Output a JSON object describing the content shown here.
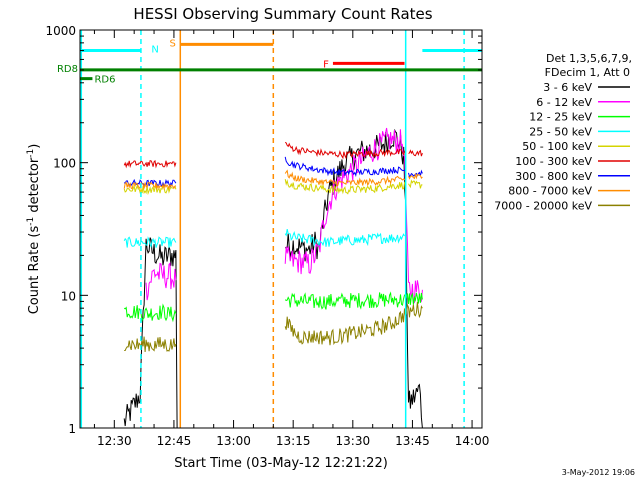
{
  "chart_data": {
    "type": "line",
    "title": "HESSI Observing Summary Count Rates",
    "xlabel": "Start Time (03-May-12 12:21:22)",
    "ylabel_main": "Count Rate (s",
    "ylabel_sup1": "-1",
    "ylabel_mid": " detector",
    "ylabel_sup2": "-1",
    "ylabel_end": ")",
    "yscale": "log",
    "ylim": [
      1,
      1000
    ],
    "x_ticks": [
      {
        "t": 30,
        "label": "12:30"
      },
      {
        "t": 45,
        "label": "12:45"
      },
      {
        "t": 60,
        "label": "13:00"
      },
      {
        "t": 75,
        "label": "13:15"
      },
      {
        "t": 90,
        "label": "13:30"
      },
      {
        "t": 105,
        "label": "13:45"
      },
      {
        "t": 120,
        "label": "14:00"
      }
    ],
    "y_ticks": [
      {
        "v": 1,
        "label": "1"
      },
      {
        "v": 10,
        "label": "10"
      },
      {
        "v": 100,
        "label": "100"
      },
      {
        "v": 1000,
        "label": "1000"
      }
    ],
    "xlim_minutes_after_1200": [
      21.37,
      122.5
    ],
    "legend": {
      "position": "right",
      "header_line1": "Det 1,3,5,6,7,9,",
      "header_line2": "FDecim 1, Att 0",
      "entries": [
        {
          "label": "3 - 6 keV",
          "color": "#000000"
        },
        {
          "label": "6 - 12 keV",
          "color": "#ff00ff"
        },
        {
          "label": "12 - 25 keV",
          "color": "#00ff00"
        },
        {
          "label": "25 - 50 keV",
          "color": "#00ffff"
        },
        {
          "label": "50 - 100 keV",
          "color": "#d4d400"
        },
        {
          "label": "100 - 300 keV",
          "color": "#e00000"
        },
        {
          "label": "300 - 800 keV",
          "color": "#0000ff"
        },
        {
          "label": "800 - 7000 keV",
          "color": "#ff8c00"
        },
        {
          "label": "7000 - 20000 keV",
          "color": "#8b8000"
        }
      ]
    },
    "flags": [
      {
        "label": "N",
        "color": "#00ffff",
        "y": 700,
        "segments": [
          [
            21.4,
            36.8
          ],
          [
            107.5,
            122.5
          ]
        ]
      },
      {
        "label": "S",
        "color": "#ff8c00",
        "y": 780,
        "segments": [
          [
            46.5,
            70
          ]
        ]
      },
      {
        "label": "F",
        "color": "#ff0000",
        "y": 560,
        "segments": [
          [
            85,
            103
          ]
        ]
      },
      {
        "label": "RD8",
        "color": "#008000",
        "y": 500,
        "segments": [
          [
            21.4,
            122.5
          ]
        ]
      },
      {
        "label": "RD6",
        "color": "#008000",
        "y": 430,
        "segments": [
          [
            21.4,
            24.5
          ]
        ]
      }
    ],
    "vertical_markers": [
      {
        "t": 21.7,
        "color": "#00ffff",
        "style": "solid"
      },
      {
        "t": 36.7,
        "color": "#00ffff",
        "style": "dashed"
      },
      {
        "t": 46.6,
        "color": "#ff8c00",
        "style": "solid"
      },
      {
        "t": 70.0,
        "color": "#ff8c00",
        "style": "dashed"
      },
      {
        "t": 103.3,
        "color": "#00ffff",
        "style": "solid"
      },
      {
        "t": 118.0,
        "color": "#00ffff",
        "style": "dashed"
      }
    ],
    "series": [
      {
        "name": "3 - 6 keV",
        "color": "#000000",
        "segments": [
          {
            "t": [
              32.5,
              34.5,
              36.5,
              38,
              40,
              42,
              44,
              45.5,
              45.8
            ],
            "v": [
              1.1,
              1.4,
              1.8,
              24,
              21,
              19,
              20,
              20,
              1.0
            ]
          },
          {
            "t": [
              73,
              75,
              77,
              79,
              80.5,
              81.5,
              82.5,
              84,
              86,
              88,
              90,
              92,
              94,
              96,
              98,
              100,
              101.5,
              102.8,
              103.3,
              104,
              106,
              107,
              107.5
            ],
            "v": [
              24,
              24,
              23,
              22,
              25,
              22,
              35,
              60,
              80,
              100,
              110,
              120,
              125,
              130,
              140,
              160,
              150,
              110,
              40,
              1.5,
              1.8,
              2.0,
              1.0
            ]
          }
        ]
      },
      {
        "name": "6 - 12 keV",
        "color": "#ff00ff",
        "segments": [
          {
            "t": [
              38,
              40,
              42,
              44,
              45.5
            ],
            "v": [
              11,
              15,
              14,
              14,
              13
            ]
          },
          {
            "t": [
              73,
              75,
              77,
              79,
              80.5,
              81.5,
              83,
              85,
              87,
              89,
              91,
              93,
              95,
              97,
              99,
              101,
              102.7,
              103.3,
              104,
              106,
              107.5
            ],
            "v": [
              19,
              18,
              18,
              17,
              20,
              22,
              40,
              60,
              75,
              85,
              95,
              110,
              125,
              135,
              150,
              145,
              140,
              60,
              11,
              11,
              11
            ]
          }
        ]
      },
      {
        "name": "12 - 25 keV",
        "color": "#00ff00",
        "segments": [
          {
            "t": [
              32.5,
              34,
              36,
              38,
              40,
              42,
              44,
              45.5
            ],
            "v": [
              7.8,
              7.6,
              7.5,
              7.3,
              7.4,
              7.5,
              7.2,
              7.3
            ]
          },
          {
            "t": [
              73,
              76,
              80,
              84,
              88,
              92,
              96,
              100,
              103,
              104,
              107.5
            ],
            "v": [
              9.3,
              9.1,
              8.9,
              9.0,
              9.1,
              9.2,
              9.2,
              9.3,
              9.2,
              9.5,
              9.3
            ]
          }
        ]
      },
      {
        "name": "25 - 50 keV",
        "color": "#00ffff",
        "segments": [
          {
            "t": [
              32.5,
              36,
              40,
              44,
              45.5
            ],
            "v": [
              25,
              25,
              25,
              25,
              25
            ]
          },
          {
            "t": [
              73,
              74,
              76,
              80,
              84,
              88,
              92,
              96,
              100,
              103
            ],
            "v": [
              30,
              28,
              27,
              26,
              25,
              26,
              26,
              27,
              27,
              28
            ]
          }
        ]
      },
      {
        "name": "50 - 100 keV",
        "color": "#d4d400",
        "segments": [
          {
            "t": [
              32.5,
              36,
              40,
              44,
              45.5
            ],
            "v": [
              63,
              63,
              63,
              63,
              63
            ]
          },
          {
            "t": [
              73,
              74,
              76,
              80,
              84,
              88,
              92,
              96,
              100,
              103.3
            ],
            "v": [
              75,
              70,
              67,
              65,
              63,
              62,
              63,
              64,
              67,
              68
            ]
          },
          {
            "t": [
              104,
              106,
              107.5
            ],
            "v": [
              68,
              68,
              68
            ]
          }
        ]
      },
      {
        "name": "100 - 300 keV",
        "color": "#e00000",
        "segments": [
          {
            "t": [
              32.5,
              36,
              40,
              44,
              45.5
            ],
            "v": [
              98,
              98,
              98,
              98,
              100
            ]
          },
          {
            "t": [
              73,
              74,
              76,
              80,
              84,
              88,
              92,
              96,
              100,
              103.3
            ],
            "v": [
              140,
              132,
              125,
              120,
              117,
              115,
              117,
              118,
              120,
              118
            ]
          },
          {
            "t": [
              104,
              106,
              107.5
            ],
            "v": [
              118,
              118,
              118
            ]
          }
        ]
      },
      {
        "name": "300 - 800 keV",
        "color": "#0000ff",
        "segments": [
          {
            "t": [
              32.5,
              36,
              40,
              44,
              45.5
            ],
            "v": [
              70,
              70,
              70,
              70,
              70
            ]
          },
          {
            "t": [
              73,
              74,
              76,
              80,
              84,
              88,
              92,
              96,
              100,
              103.3
            ],
            "v": [
              110,
              100,
              95,
              90,
              86,
              84,
              85,
              86,
              88,
              88
            ]
          },
          {
            "t": [
              104,
              106,
              107.5
            ],
            "v": [
              83,
              83,
              83
            ]
          }
        ]
      },
      {
        "name": "800 - 7000 keV",
        "color": "#ff8c00",
        "segments": [
          {
            "t": [
              32.5,
              36,
              40,
              44,
              45.5
            ],
            "v": [
              67,
              67,
              67,
              67,
              67
            ]
          },
          {
            "t": [
              73,
              74,
              76,
              80,
              84,
              88,
              92,
              96,
              100,
              103.3
            ],
            "v": [
              85,
              80,
              76,
              73,
              71,
              70,
              71,
              72,
              74,
              75
            ]
          },
          {
            "t": [
              104,
              106,
              107.5
            ],
            "v": [
              78,
              78,
              78
            ]
          }
        ]
      },
      {
        "name": "7000 - 20000 keV",
        "color": "#8b8000",
        "segments": [
          {
            "t": [
              32.5,
              34,
              36,
              38,
              40,
              42,
              44,
              45.5
            ],
            "v": [
              4.4,
              4.3,
              4.2,
              4.3,
              4.2,
              4.3,
              4.2,
              4.3
            ]
          },
          {
            "t": [
              73,
              74,
              76,
              78,
              80,
              84,
              88,
              92,
              96,
              100,
              103,
              104,
              105.5,
              107.5
            ],
            "v": [
              6.5,
              5.8,
              5.0,
              4.8,
              4.9,
              4.8,
              5.0,
              5.3,
              5.6,
              6.2,
              7.2,
              7.5,
              7.8,
              8.0
            ]
          }
        ]
      }
    ]
  },
  "footer": {
    "timestamp": "3-May-2012 19:06"
  }
}
